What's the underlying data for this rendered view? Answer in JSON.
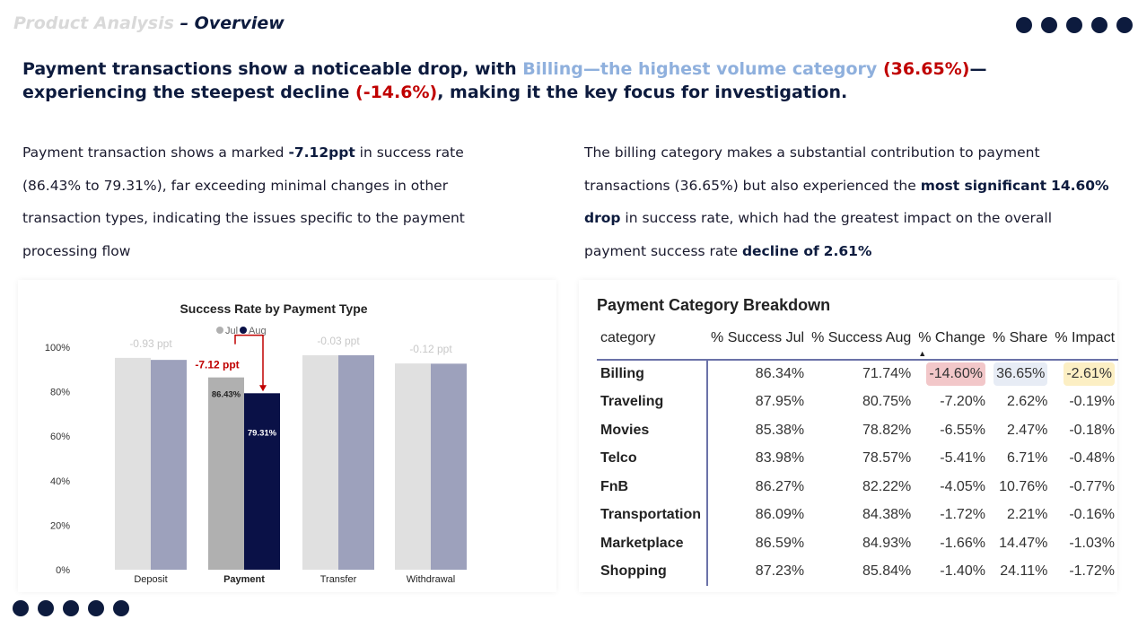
{
  "header": {
    "section": "Product Analysis",
    "title": "– Overview"
  },
  "headline": {
    "p1": "Payment transactions show a noticeable drop, with ",
    "p2": "Billing—the highest volume category",
    "p3": " ",
    "p4": "(36.65%)",
    "p5": "—experiencing the steepest decline ",
    "p6": "(-14.6%)",
    "p7": ", making it the key focus for investigation."
  },
  "left_text": {
    "t1": "Payment transaction shows a marked ",
    "t2": "-7.12ppt",
    "t3": " in success rate (86.43% to 79.31%), far exceeding minimal changes in other transaction types, indicating the issues specific to the payment processing flow"
  },
  "right_text": {
    "t1": "The billing category makes a substantial contribution to payment transactions (36.65%) but also experienced the ",
    "t2": "most significant",
    "t3": " ",
    "t4": "14.60%",
    "t5": " ",
    "t6": "drop",
    "t7": " in success rate, which had the greatest impact on the overall payment success rate ",
    "t8": "decline of",
    "t9": " ",
    "t10": "2.61%"
  },
  "colors": {
    "jul": "#e0e0e0",
    "aug": "#9da1bc",
    "jul_hl": "#b0b0b0",
    "aug_hl": "#0a1147",
    "accent": "#c00000"
  },
  "chart_data": {
    "type": "bar",
    "title": "Success Rate by Payment Type",
    "categories": [
      "Deposit",
      "Payment",
      "Transfer",
      "Withdrawal"
    ],
    "series": [
      {
        "name": "Jul",
        "values": [
          95.2,
          86.43,
          96.4,
          92.7
        ]
      },
      {
        "name": "Aug",
        "values": [
          94.3,
          79.31,
          96.4,
          92.6
        ]
      }
    ],
    "change_labels": [
      "-0.93 ppt",
      "-7.12 ppt",
      "-0.03 ppt",
      "-0.12 ppt"
    ],
    "value_labels": {
      "jul": "86.43%",
      "aug": "79.31%"
    },
    "yticks": [
      "0%",
      "20%",
      "40%",
      "60%",
      "80%",
      "100%"
    ],
    "ylim": [
      0,
      100
    ],
    "legend": "top"
  },
  "table": {
    "title": "Payment Category Breakdown",
    "columns": [
      "category",
      "% Success Jul",
      "% Success Aug",
      "% Change",
      "% Share",
      "% Impact"
    ],
    "rows": [
      [
        "Billing",
        "86.34%",
        "71.74%",
        "-14.60%",
        "36.65%",
        "-2.61%"
      ],
      [
        "Traveling",
        "87.95%",
        "80.75%",
        "-7.20%",
        "2.62%",
        "-0.19%"
      ],
      [
        "Movies",
        "85.38%",
        "78.82%",
        "-6.55%",
        "2.47%",
        "-0.18%"
      ],
      [
        "Telco",
        "83.98%",
        "78.57%",
        "-5.41%",
        "6.71%",
        "-0.48%"
      ],
      [
        "FnB",
        "86.27%",
        "82.22%",
        "-4.05%",
        "10.76%",
        "-0.77%"
      ],
      [
        "Transportation",
        "86.09%",
        "84.38%",
        "-1.72%",
        "2.21%",
        "-0.16%"
      ],
      [
        "Marketplace",
        "86.59%",
        "84.93%",
        "-1.66%",
        "14.47%",
        "-1.03%"
      ],
      [
        "Shopping",
        "87.23%",
        "85.84%",
        "-1.40%",
        "24.11%",
        "-1.72%"
      ]
    ]
  }
}
